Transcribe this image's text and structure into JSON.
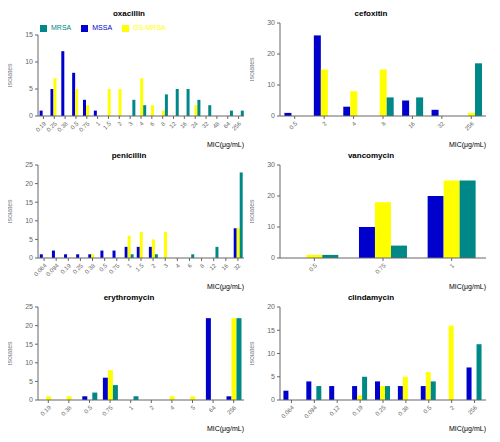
{
  "chart_data": [
    {
      "type": "bar",
      "title": "oxacillin",
      "xlabel": "MIC(μg/mL)",
      "ylabel": "Isolates",
      "ylim": [
        0,
        15
      ],
      "yticks": [
        0,
        5,
        10,
        15
      ],
      "grid": false,
      "legend": "upper left",
      "categories": [
        "0.19",
        "0.25",
        "0.38",
        "0.5",
        "0.75",
        "1",
        "1.5",
        "2",
        "3",
        "4",
        "6",
        "8",
        "12",
        "16",
        "24",
        "32",
        "48",
        "64",
        "256"
      ],
      "series": [
        {
          "name": "MSSA",
          "color": "#0000cc",
          "values": [
            1,
            5,
            12,
            8,
            3,
            1,
            0,
            0,
            0,
            0,
            0,
            0,
            0,
            0,
            0,
            0,
            0,
            0,
            0
          ]
        },
        {
          "name": "OS-MRSA",
          "color": "#ffff00",
          "values": [
            0,
            7,
            0,
            5,
            2,
            0,
            5,
            5,
            0,
            7,
            2,
            1,
            0,
            0,
            2,
            0,
            0,
            0,
            0
          ]
        },
        {
          "name": "MRSA",
          "color": "#008888",
          "values": [
            0,
            0,
            0,
            0,
            0,
            0,
            0,
            0,
            3,
            2,
            0,
            4,
            5,
            5,
            3,
            2,
            0,
            1,
            1
          ]
        }
      ]
    },
    {
      "type": "bar",
      "title": "cefoxitin",
      "xlabel": "MIC(μg/mL)",
      "ylabel": "Isolates",
      "ylim": [
        0,
        30
      ],
      "yticks": [
        0,
        10,
        20,
        30
      ],
      "grid": false,
      "categories": [
        "0.5",
        "2",
        "4",
        "8",
        "16",
        "32",
        "256"
      ],
      "series": [
        {
          "name": "MSSA",
          "color": "#0000cc",
          "values": [
            1,
            26,
            3,
            0,
            5,
            2,
            0
          ]
        },
        {
          "name": "OS-MRSA",
          "color": "#ffff00",
          "values": [
            0,
            15,
            8,
            15,
            0,
            0,
            1
          ]
        },
        {
          "name": "MRSA",
          "color": "#008888",
          "values": [
            0,
            0,
            0,
            6,
            6,
            0,
            17
          ]
        }
      ]
    },
    {
      "type": "bar",
      "title": "penicillin",
      "xlabel": "MIC(μg/mL)",
      "ylabel": "Isolates",
      "ylim": [
        0,
        25
      ],
      "yticks": [
        0,
        5,
        10,
        15,
        20,
        25
      ],
      "grid": false,
      "categories": [
        "0.064",
        "0.094",
        "0.19",
        "0.25",
        "0.38",
        "0.5",
        "0.75",
        "1",
        "1.5",
        "2",
        "3",
        "4",
        "6",
        "8",
        "12",
        "16",
        "32"
      ],
      "series": [
        {
          "name": "MSSA",
          "color": "#0000cc",
          "values": [
            1,
            2,
            1,
            1,
            1,
            2,
            2,
            3,
            3,
            3,
            0,
            0,
            0,
            0,
            0,
            0,
            8
          ]
        },
        {
          "name": "OS-MRSA",
          "color": "#ffff00",
          "values": [
            0,
            0,
            0,
            0,
            1,
            0,
            0,
            6,
            7,
            5,
            7,
            0,
            0,
            0,
            0,
            0,
            8
          ]
        },
        {
          "name": "MRSA",
          "color": "#008888",
          "values": [
            0,
            0,
            0,
            0,
            0,
            0,
            0,
            1,
            0,
            1,
            0,
            0,
            1,
            0,
            3,
            0,
            23
          ]
        }
      ]
    },
    {
      "type": "bar",
      "title": "vancomycin",
      "xlabel": "MIC(μg/mL)",
      "ylabel": "Isolates",
      "ylim": [
        0,
        30
      ],
      "yticks": [
        0,
        10,
        20,
        30
      ],
      "grid": false,
      "categories": [
        "0.5",
        "0.75",
        "1"
      ],
      "series": [
        {
          "name": "MSSA",
          "color": "#0000cc",
          "values": [
            0,
            10,
            20
          ]
        },
        {
          "name": "OS-MRSA",
          "color": "#ffff00",
          "values": [
            1,
            18,
            25
          ]
        },
        {
          "name": "MRSA",
          "color": "#008888",
          "values": [
            1,
            4,
            25
          ]
        }
      ]
    },
    {
      "type": "bar",
      "title": "erythromycin",
      "xlabel": "MIC(μg/mL)",
      "ylabel": "Isolates",
      "ylim": [
        0,
        25
      ],
      "yticks": [
        0,
        5,
        10,
        15,
        20,
        25
      ],
      "grid": false,
      "categories": [
        "0.19",
        "0.38",
        "0.5",
        "0.75",
        "1",
        "2",
        "4",
        "5",
        "64",
        "256"
      ],
      "series": [
        {
          "name": "MSSA",
          "color": "#0000cc",
          "values": [
            0,
            0,
            1,
            6,
            0,
            0,
            0,
            0,
            22,
            1
          ]
        },
        {
          "name": "OS-MRSA",
          "color": "#ffff00",
          "values": [
            1,
            1,
            0,
            8,
            0,
            0,
            1,
            1,
            0,
            22
          ]
        },
        {
          "name": "MRSA",
          "color": "#008888",
          "values": [
            0,
            0,
            2,
            4,
            1,
            0,
            0,
            0,
            0,
            22
          ]
        }
      ]
    },
    {
      "type": "bar",
      "title": "clindamycin",
      "xlabel": "MIC(μg/mL)",
      "ylabel": "Isolates",
      "ylim": [
        0,
        20
      ],
      "yticks": [
        0,
        5,
        10,
        15,
        20
      ],
      "grid": false,
      "categories": [
        "0.064",
        "0.094",
        "0.12",
        "0.19",
        "0.25",
        "0.38",
        "0.5",
        "2",
        "256"
      ],
      "series": [
        {
          "name": "MSSA",
          "color": "#0000cc",
          "values": [
            2,
            4,
            3,
            3,
            4,
            3,
            3,
            0,
            7
          ]
        },
        {
          "name": "OS-MRSA",
          "color": "#ffff00",
          "values": [
            0,
            0,
            0,
            1,
            3,
            5,
            6,
            16,
            0
          ]
        },
        {
          "name": "MRSA",
          "color": "#008888",
          "values": [
            0,
            3,
            0,
            5,
            3,
            0,
            4,
            0,
            12
          ]
        }
      ]
    }
  ]
}
